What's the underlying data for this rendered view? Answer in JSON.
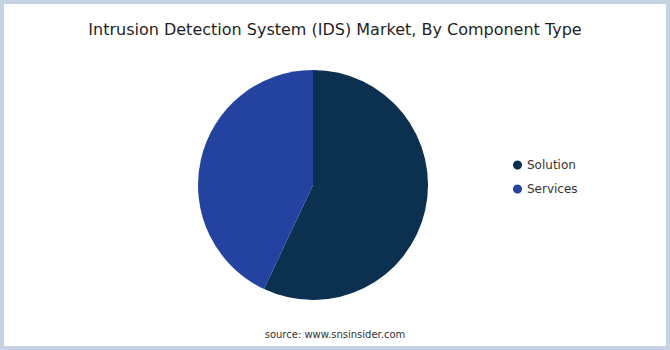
{
  "chart_data": {
    "type": "pie",
    "title": "Intrusion Detection System (IDS) Market, By Component Type",
    "categories": [
      "Solution",
      "Services"
    ],
    "values": [
      57,
      43
    ],
    "colors": [
      "#0b3050",
      "#2443a0"
    ],
    "legend": "right",
    "source": "source: www.snsinsider.com"
  }
}
